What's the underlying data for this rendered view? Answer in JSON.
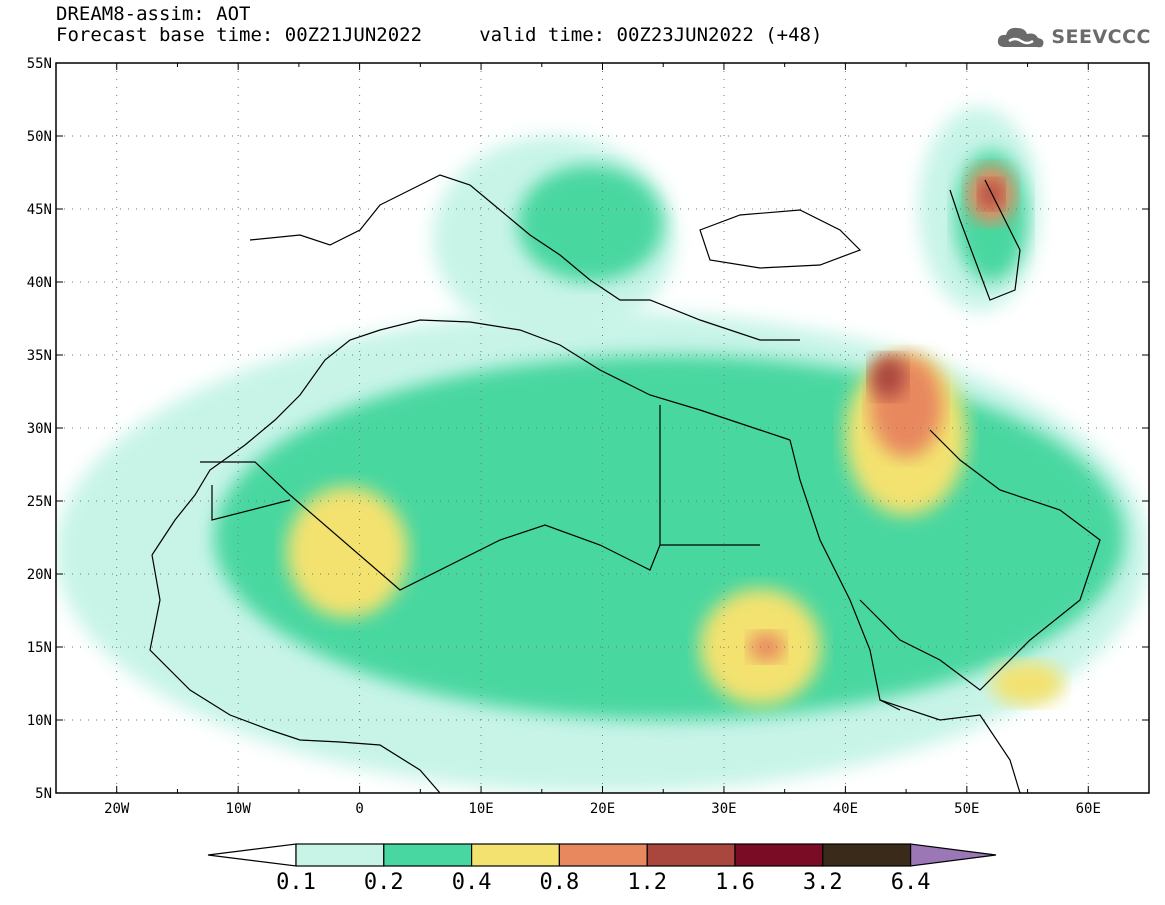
{
  "header": {
    "model_title": "DREAM8-assim: AOT",
    "forecast_line": "Forecast base time: 00Z21JUN2022     valid time: 00Z23JUN2022 (+48)"
  },
  "logo": {
    "text": "SEEVCCC",
    "icon": "cloud-logo-icon"
  },
  "map": {
    "lon_range": [
      -25,
      65
    ],
    "lat_range": [
      5,
      55
    ],
    "lon_ticks": [
      {
        "value": -20,
        "label": "20W"
      },
      {
        "value": -10,
        "label": "10W"
      },
      {
        "value": 0,
        "label": "0"
      },
      {
        "value": 10,
        "label": "10E"
      },
      {
        "value": 20,
        "label": "20E"
      },
      {
        "value": 30,
        "label": "30E"
      },
      {
        "value": 40,
        "label": "40E"
      },
      {
        "value": 50,
        "label": "50E"
      },
      {
        "value": 60,
        "label": "60E"
      }
    ],
    "lat_ticks": [
      {
        "value": 5,
        "label": "5N"
      },
      {
        "value": 10,
        "label": "10N"
      },
      {
        "value": 15,
        "label": "15N"
      },
      {
        "value": 20,
        "label": "20N"
      },
      {
        "value": 25,
        "label": "25N"
      },
      {
        "value": 30,
        "label": "30N"
      },
      {
        "value": 35,
        "label": "35N"
      },
      {
        "value": 40,
        "label": "40N"
      },
      {
        "value": 45,
        "label": "45N"
      },
      {
        "value": 50,
        "label": "50N"
      },
      {
        "value": 55,
        "label": "55N"
      }
    ],
    "grid": "dotted",
    "dust_fields": [
      {
        "level": 0.1,
        "lon": -25,
        "lat": 5,
        "w": 90,
        "h": 33
      },
      {
        "level": 0.1,
        "lon": 6,
        "lat": 36,
        "w": 20,
        "h": 14
      },
      {
        "level": 0.1,
        "lon": 46,
        "lat": 38,
        "w": 10,
        "h": 14
      },
      {
        "level": 0.2,
        "lon": -12,
        "lat": 10,
        "w": 75,
        "h": 25
      },
      {
        "level": 0.2,
        "lon": 13,
        "lat": 40,
        "w": 12,
        "h": 8
      },
      {
        "level": 0.2,
        "lon": 49,
        "lat": 40,
        "w": 6,
        "h": 9
      },
      {
        "level": 0.4,
        "lon": -6,
        "lat": 17,
        "w": 10,
        "h": 9
      },
      {
        "level": 0.4,
        "lon": 28,
        "lat": 11,
        "w": 10,
        "h": 8
      },
      {
        "level": 0.4,
        "lon": 40,
        "lat": 24,
        "w": 10,
        "h": 11
      },
      {
        "level": 0.4,
        "lon": 52,
        "lat": 11,
        "w": 6,
        "h": 3
      },
      {
        "level": 0.8,
        "lon": 32,
        "lat": 14,
        "w": 3,
        "h": 2
      },
      {
        "level": 0.8,
        "lon": 42,
        "lat": 28,
        "w": 6,
        "h": 7
      },
      {
        "level": 0.8,
        "lon": 50,
        "lat": 44,
        "w": 4,
        "h": 4
      },
      {
        "level": 1.2,
        "lon": 42,
        "lat": 32,
        "w": 3,
        "h": 3
      },
      {
        "level": 1.2,
        "lon": 51,
        "lat": 45,
        "w": 2,
        "h": 2
      }
    ]
  },
  "colorbar": {
    "bins": [
      {
        "color": "#c8f4e8"
      },
      {
        "color": "#48d7a0"
      },
      {
        "color": "#f3e26f"
      },
      {
        "color": "#e8885f"
      },
      {
        "color": "#a9473f"
      },
      {
        "color": "#7a0c26"
      },
      {
        "color": "#3a2a1a"
      }
    ],
    "under_color": "#ffffff",
    "over_color": "#9b77b5",
    "labels": [
      "0.1",
      "0.2",
      "0.4",
      "0.8",
      "1.2",
      "1.6",
      "3.2",
      "6.4"
    ]
  }
}
